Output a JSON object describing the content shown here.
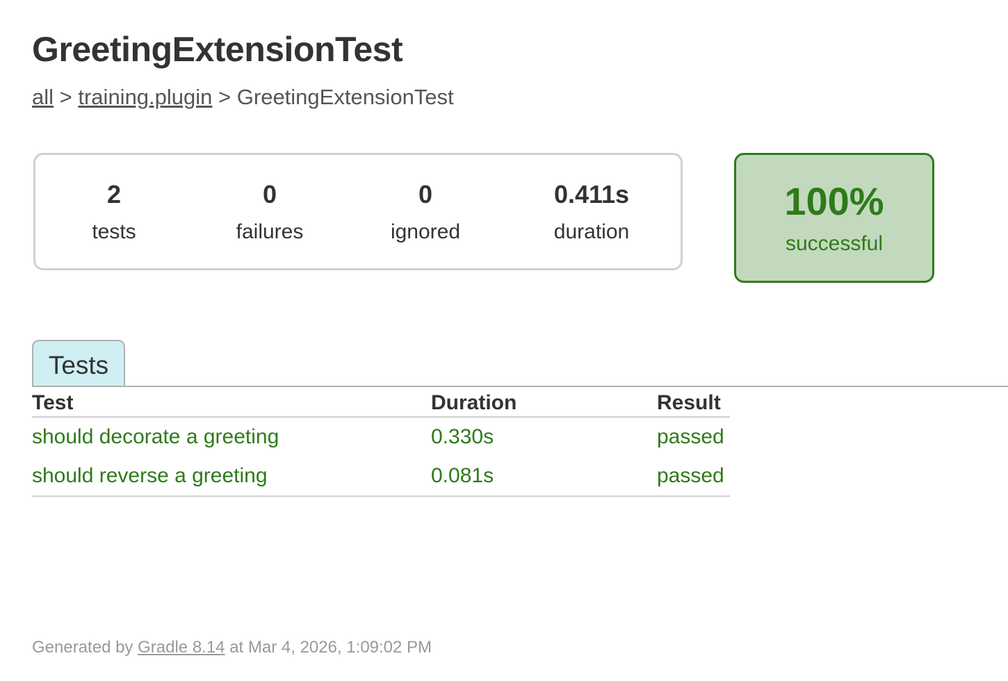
{
  "title": "GreetingExtensionTest",
  "breadcrumb": {
    "items": [
      "all",
      "training.plugin"
    ],
    "sep": ">",
    "current": "GreetingExtensionTest"
  },
  "summary": {
    "tests": {
      "value": "2",
      "label": "tests"
    },
    "failures": {
      "value": "0",
      "label": "failures"
    },
    "ignored": {
      "value": "0",
      "label": "ignored"
    },
    "duration": {
      "value": "0.411s",
      "label": "duration"
    },
    "success": {
      "value": "100%",
      "label": "successful"
    }
  },
  "tabs": [
    {
      "label": "Tests",
      "active": true
    }
  ],
  "table": {
    "headers": [
      "Test",
      "Duration",
      "Result"
    ],
    "rows": [
      {
        "test": "should decorate a greeting",
        "duration": "0.330s",
        "result": "passed"
      },
      {
        "test": "should reverse a greeting",
        "duration": "0.081s",
        "result": "passed"
      }
    ]
  },
  "footer": {
    "prefix": "Generated by",
    "link": "Gradle 8.14",
    "suffix": "at Mar 4, 2026, 1:09:02 PM"
  },
  "colors": {
    "success": "#2f7a1a",
    "success_bg": "#c2d9bd",
    "tab_bg": "#d0eff3"
  }
}
